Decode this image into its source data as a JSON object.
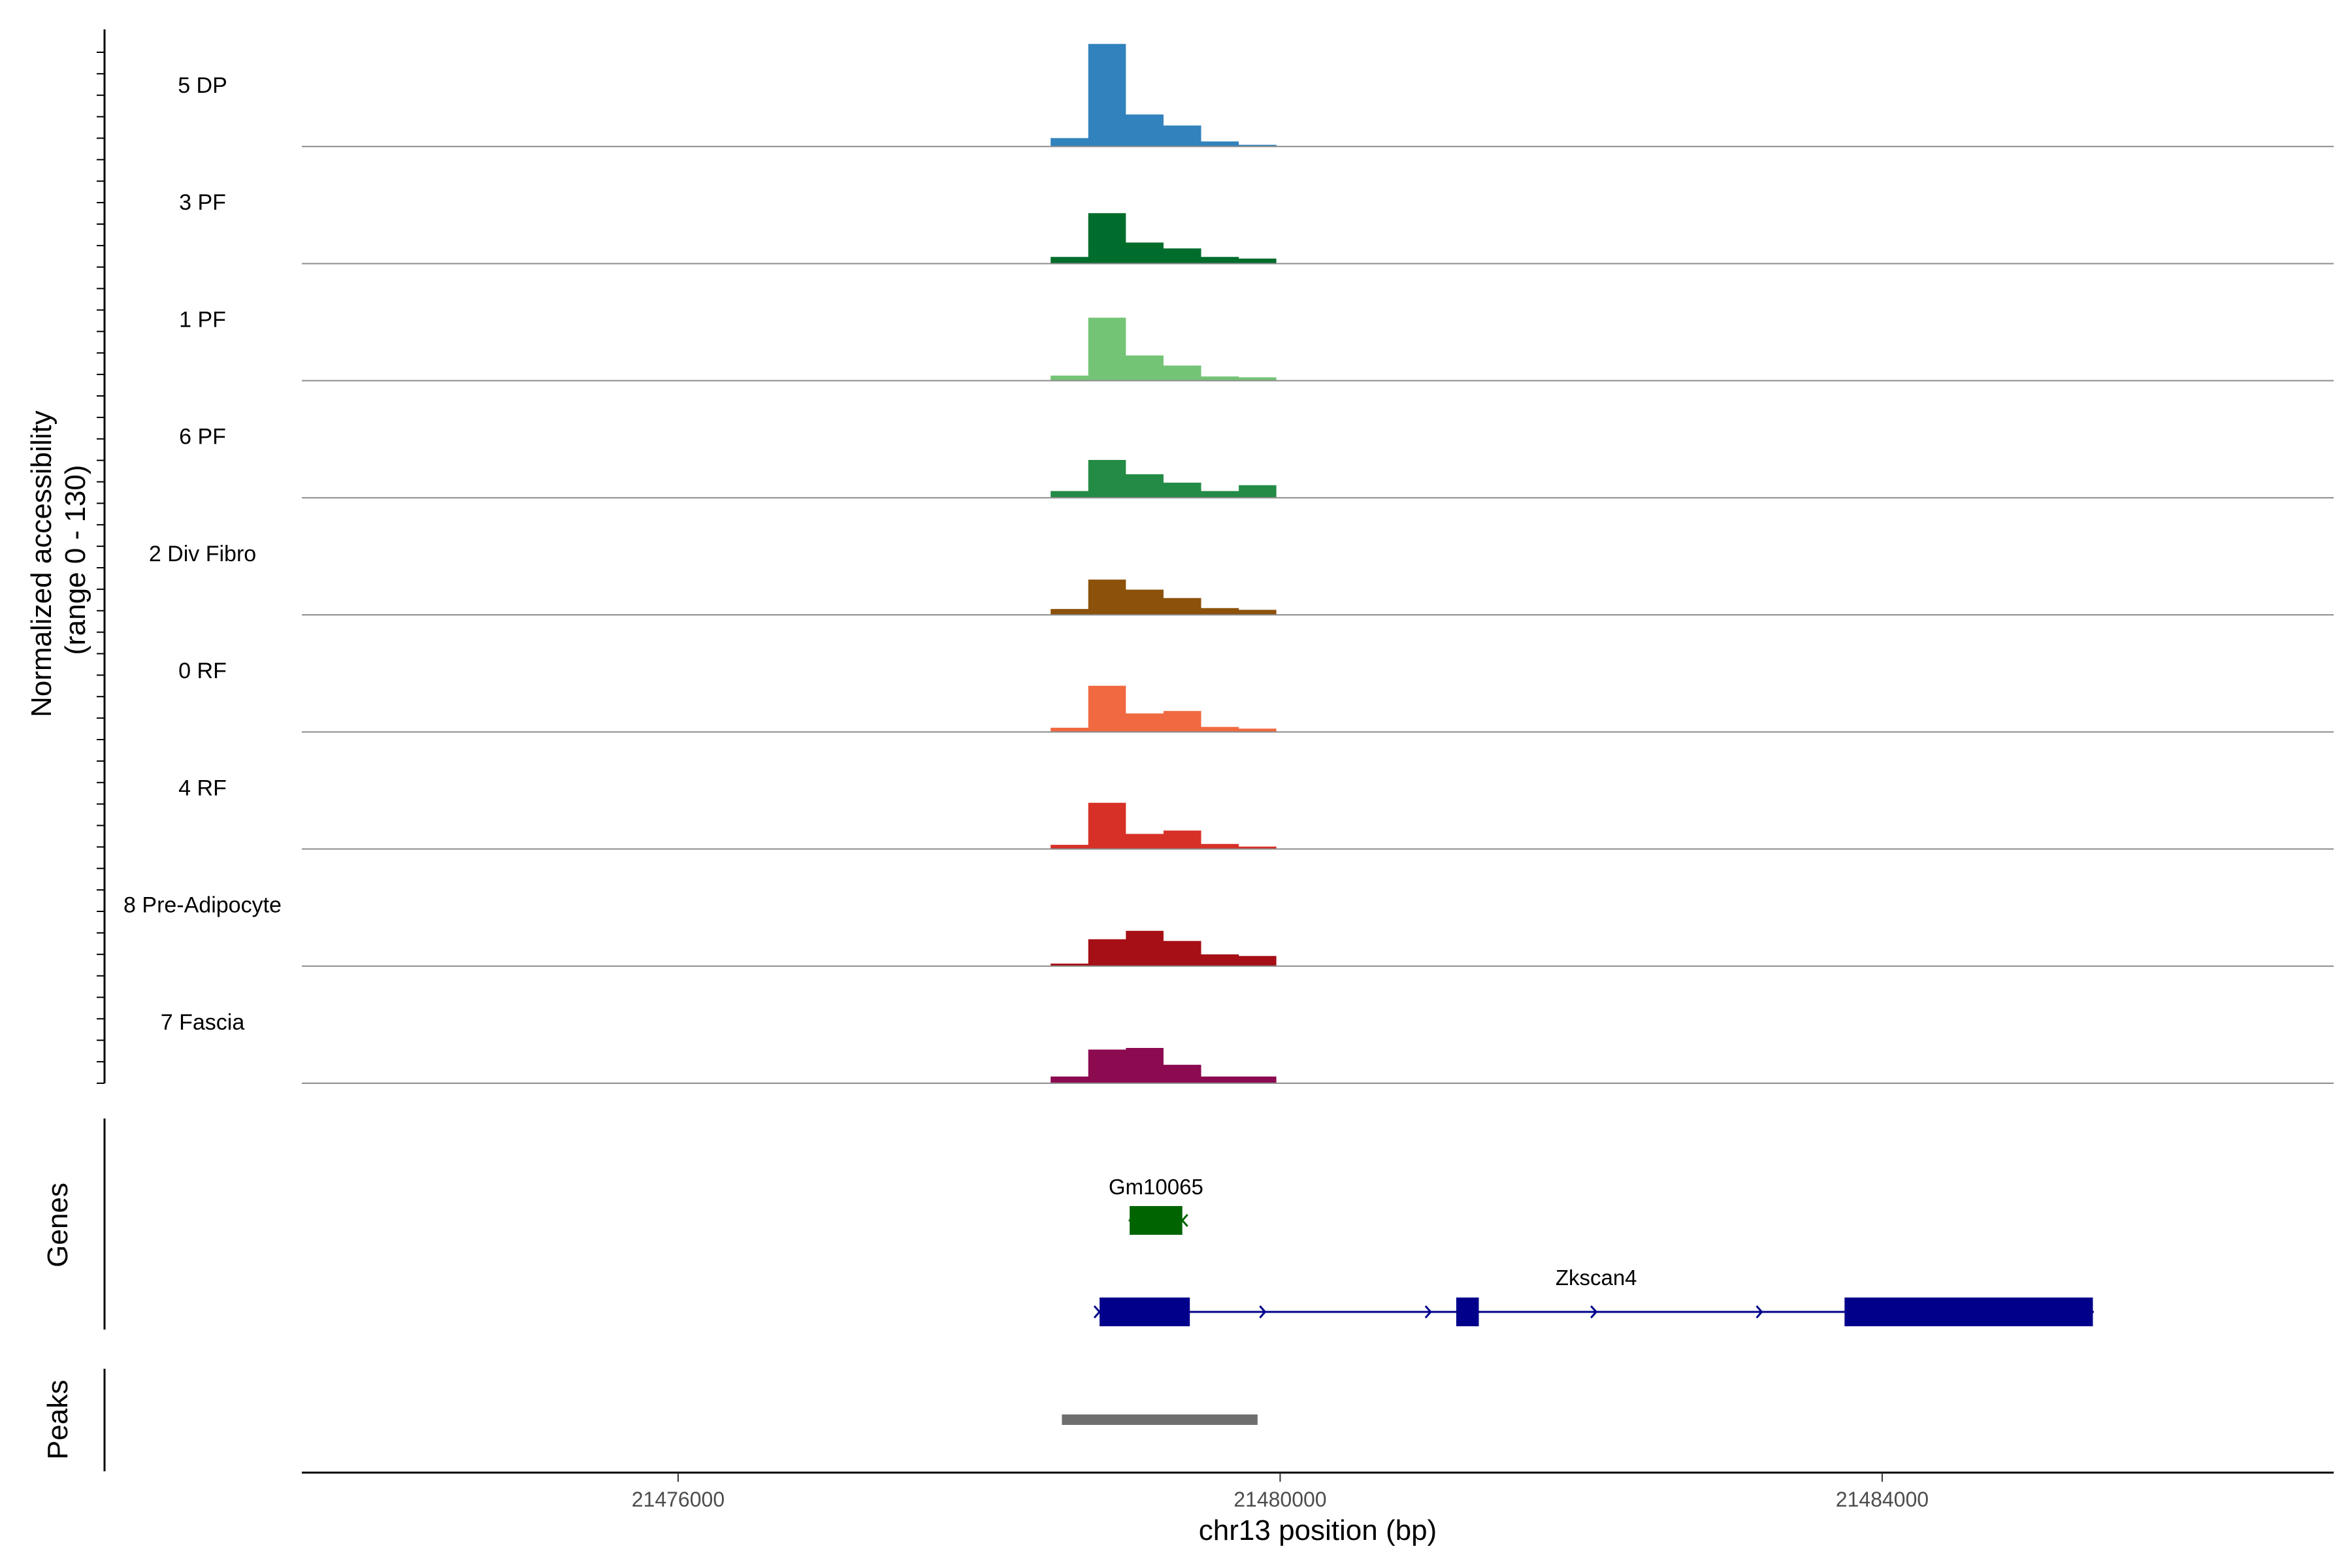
{
  "chart_data": {
    "type": "area",
    "title": "",
    "xlabel": "chr13 position (bp)",
    "ylabel": "Normalized accessibility\n(range 0 - 130)",
    "ylabel_line1": "Normalized accessibility",
    "ylabel_line2": "(range 0 - 130)",
    "xlim": [
      21473500,
      21487000
    ],
    "ylim": [
      0,
      130
    ],
    "x_ticks": [
      21476000,
      21480000,
      21484000
    ],
    "x_tick_labels": [
      "21476000",
      "21480000",
      "21484000"
    ],
    "coverage_window_bp": 250,
    "series": [
      {
        "name": "5 DP",
        "color": "#3182BD",
        "x": [
          21478600,
          21478850,
          21479100,
          21479350,
          21479600,
          21479850
        ],
        "values": [
          10,
          122,
          38,
          25,
          6,
          2
        ]
      },
      {
        "name": "3 PF",
        "color": "#006D2C",
        "x": [
          21478600,
          21478850,
          21479100,
          21479350,
          21479600,
          21479850
        ],
        "values": [
          8,
          60,
          25,
          18,
          8,
          6
        ]
      },
      {
        "name": "1 PF",
        "color": "#74C476",
        "x": [
          21478600,
          21478850,
          21479100,
          21479350,
          21479600,
          21479850
        ],
        "values": [
          6,
          75,
          30,
          18,
          5,
          4
        ]
      },
      {
        "name": "6 PF",
        "color": "#238B45",
        "x": [
          21478600,
          21478850,
          21479100,
          21479350,
          21479600,
          21479850
        ],
        "values": [
          8,
          45,
          28,
          18,
          8,
          15
        ]
      },
      {
        "name": "2 Div Fibro",
        "color": "#8C510A",
        "x": [
          21478600,
          21478850,
          21479100,
          21479350,
          21479600,
          21479850
        ],
        "values": [
          7,
          42,
          30,
          20,
          8,
          6
        ]
      },
      {
        "name": "0 RF",
        "color": "#F16941",
        "x": [
          21478600,
          21478850,
          21479100,
          21479350,
          21479600,
          21479850
        ],
        "values": [
          5,
          55,
          22,
          25,
          6,
          4
        ]
      },
      {
        "name": "4 RF",
        "color": "#D73027",
        "x": [
          21478600,
          21478850,
          21479100,
          21479350,
          21479600,
          21479850
        ],
        "values": [
          5,
          55,
          18,
          22,
          6,
          3
        ]
      },
      {
        "name": "8 Pre-Adipocyte",
        "color": "#A50F15",
        "x": [
          21478600,
          21478850,
          21479100,
          21479350,
          21479600,
          21479850
        ],
        "values": [
          3,
          32,
          42,
          30,
          14,
          12
        ]
      },
      {
        "name": "7 Fascia",
        "color": "#8B0A50",
        "x": [
          21478600,
          21478850,
          21479100,
          21479350,
          21479600,
          21479850
        ],
        "values": [
          8,
          40,
          42,
          22,
          8,
          8
        ]
      }
    ],
    "genes_track_label": "Genes",
    "genes": [
      {
        "name": "Gm10065",
        "color": "#006400",
        "strand": "-",
        "start": 21479000,
        "end": 21479350,
        "exons": [
          [
            21479000,
            21479350
          ]
        ]
      },
      {
        "name": "Zkscan4",
        "color": "#00008B",
        "strand": "+",
        "start": 21478800,
        "end": 21485400,
        "exons": [
          [
            21478800,
            21479400
          ],
          [
            21481170,
            21481320
          ],
          [
            21483750,
            21485400
          ]
        ]
      }
    ],
    "peaks_track_label": "Peaks",
    "peaks": [
      {
        "start": 21478550,
        "end": 21479850,
        "color": "#6E6E6E"
      }
    ]
  }
}
